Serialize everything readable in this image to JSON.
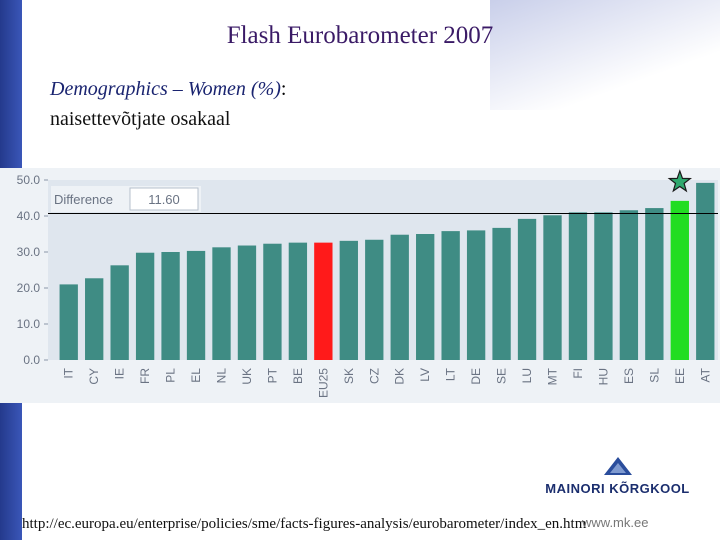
{
  "slide": {
    "title": "Flash Eurobarometer 2007",
    "subtitle": "Demographics – Women (%)",
    "subtitle_colon": ":",
    "subtitle2": "naisettevõtjate osakaal",
    "source_url": "http://ec.europa.eu/enterprise/policies/sme/facts-figures-analysis/eurobarometer/index_en.htm",
    "site_url": "www.mk.ee",
    "logo_text": "MAINORI KÕRGKOOL"
  },
  "colors": {
    "bar": "#3f8c84",
    "eu25": "#ff1a1a",
    "ee": "#22dd22",
    "star": "#2fa86e"
  },
  "chart_data": {
    "type": "bar",
    "categories": [
      "IT",
      "CY",
      "IE",
      "FR",
      "PL",
      "EL",
      "NL",
      "UK",
      "PT",
      "BE",
      "EU25",
      "SK",
      "CZ",
      "DK",
      "LV",
      "LT",
      "DE",
      "SE",
      "LU",
      "MT",
      "FI",
      "HU",
      "ES",
      "SL",
      "EE",
      "AT"
    ],
    "values": [
      21.0,
      22.7,
      26.3,
      29.8,
      30.0,
      30.3,
      31.3,
      31.8,
      32.3,
      32.6,
      32.6,
      33.1,
      33.4,
      34.8,
      35.0,
      35.8,
      36.0,
      36.7,
      39.2,
      40.2,
      41.0,
      41.0,
      41.6,
      42.2,
      44.2,
      49.2
    ],
    "highlight": {
      "EU25": "eu25",
      "EE": "ee"
    },
    "ylim": [
      0,
      50
    ],
    "yticks": [
      "0.0",
      "10.0",
      "20.0",
      "30.0",
      "40.0",
      "50.0"
    ],
    "difference_label": "Difference",
    "difference_value": "11.60",
    "reference_line": 40.7,
    "marker": {
      "category": "EE",
      "symbol": "star"
    }
  }
}
